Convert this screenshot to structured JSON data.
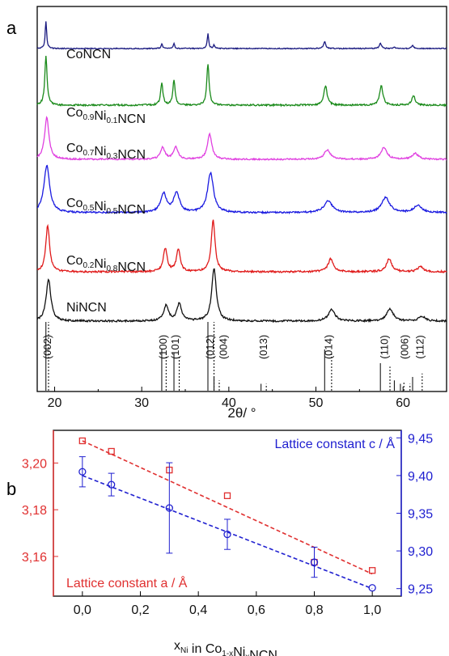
{
  "chart_data": [
    {
      "panel": "a",
      "type": "line",
      "xlabel": "2θ/ °",
      "ylabel": "",
      "xlim": [
        18,
        65
      ],
      "xticks": [
        20,
        30,
        40,
        50,
        60
      ],
      "series": [
        {
          "name": "CoNCN",
          "label_main": "CoNCN",
          "label_parts": [
            [
              "CoNCN",
              false
            ]
          ],
          "color": "#1a1a80",
          "width": 0.1,
          "peaks": [
            [
              19.0,
              1.0
            ],
            [
              32.3,
              0.18
            ],
            [
              33.7,
              0.2
            ],
            [
              37.6,
              0.55
            ],
            [
              38.3,
              0.12
            ],
            [
              51.0,
              0.25
            ],
            [
              57.4,
              0.2
            ],
            [
              59.0,
              0.05
            ],
            [
              61.1,
              0.11
            ]
          ]
        },
        {
          "name": "Co0.9Ni0.1NCN",
          "label_parts": [
            [
              "Co",
              false
            ],
            [
              "0.9",
              true
            ],
            [
              "Ni",
              false
            ],
            [
              "0.1",
              true
            ],
            [
              "NCN",
              false
            ]
          ],
          "color": "#1a8a1a",
          "width": 0.16,
          "peaks": [
            [
              19.0,
              1.0
            ],
            [
              32.3,
              0.45
            ],
            [
              33.7,
              0.5
            ],
            [
              37.6,
              0.85
            ],
            [
              51.1,
              0.4
            ],
            [
              57.5,
              0.4
            ],
            [
              61.2,
              0.2
            ]
          ]
        },
        {
          "name": "Co0.7Ni0.3NCN",
          "label_parts": [
            [
              "Co",
              false
            ],
            [
              "0.7",
              true
            ],
            [
              "Ni",
              false
            ],
            [
              "0.3",
              true
            ],
            [
              "NCN",
              false
            ]
          ],
          "color": "#e040e0",
          "width": 0.3,
          "peaks": [
            [
              19.1,
              1.0
            ],
            [
              32.4,
              0.28
            ],
            [
              33.9,
              0.3
            ],
            [
              37.8,
              0.6
            ],
            [
              51.3,
              0.22
            ],
            [
              57.8,
              0.28
            ],
            [
              61.4,
              0.14
            ]
          ]
        },
        {
          "name": "Co0.5Ni0.5NCN",
          "label_parts": [
            [
              "Co",
              false
            ],
            [
              "0.5",
              true
            ],
            [
              "Ni",
              false
            ],
            [
              "0.5",
              true
            ],
            [
              "NCN",
              false
            ]
          ],
          "color": "#1a1ae0",
          "width": 0.4,
          "peaks": [
            [
              19.1,
              1.0
            ],
            [
              32.5,
              0.4
            ],
            [
              34.0,
              0.42
            ],
            [
              37.9,
              0.85
            ],
            [
              51.4,
              0.25
            ],
            [
              58.0,
              0.32
            ],
            [
              61.7,
              0.15
            ]
          ]
        },
        {
          "name": "Co0.2Ni0.8NCN",
          "label_parts": [
            [
              "Co",
              false
            ],
            [
              "0.2",
              true
            ],
            [
              "Ni",
              false
            ],
            [
              "0.8",
              true
            ],
            [
              "NCN",
              false
            ]
          ],
          "color": "#e01a1a",
          "width": 0.26,
          "peaks": [
            [
              19.2,
              0.9
            ],
            [
              32.7,
              0.45
            ],
            [
              34.2,
              0.42
            ],
            [
              38.2,
              1.0
            ],
            [
              51.7,
              0.25
            ],
            [
              58.4,
              0.25
            ],
            [
              62.0,
              0.1
            ]
          ]
        },
        {
          "name": "NiNCN",
          "label_parts": [
            [
              "NiNCN",
              false
            ]
          ],
          "color": "#111111",
          "width": 0.32,
          "peaks": [
            [
              19.3,
              0.8
            ],
            [
              32.8,
              0.3
            ],
            [
              34.3,
              0.32
            ],
            [
              38.3,
              1.0
            ],
            [
              51.8,
              0.22
            ],
            [
              58.5,
              0.23
            ],
            [
              62.2,
              0.09
            ]
          ]
        }
      ],
      "reflections": [
        {
          "label": "(002)",
          "x": 19.2
        },
        {
          "label": "(100)",
          "x": 32.5
        },
        {
          "label": "(101)",
          "x": 33.9
        },
        {
          "label": "(012)",
          "x": 37.9
        },
        {
          "label": "(004)",
          "x": 39.4
        },
        {
          "label": "(013)",
          "x": 44.0
        },
        {
          "label": "(014)",
          "x": 51.5
        },
        {
          "label": "(110)",
          "x": 57.9
        },
        {
          "label": "(006)",
          "x": 60.2
        },
        {
          "label": "(112)",
          "x": 62.0
        }
      ],
      "stick_lines_solid": [
        [
          19.0,
          1.0
        ],
        [
          32.3,
          0.6
        ],
        [
          33.7,
          0.55
        ],
        [
          37.6,
          1.0
        ],
        [
          38.3,
          0.2
        ],
        [
          43.7,
          0.1
        ],
        [
          51.0,
          0.6
        ],
        [
          57.4,
          0.4
        ],
        [
          59.0,
          0.15
        ],
        [
          59.7,
          0.1
        ],
        [
          61.1,
          0.2
        ]
      ],
      "stick_lines_dotted": [
        [
          19.3,
          1.0
        ],
        [
          32.8,
          0.55
        ],
        [
          34.3,
          0.5
        ],
        [
          38.3,
          1.0
        ],
        [
          38.9,
          0.15
        ],
        [
          44.3,
          0.1
        ],
        [
          51.8,
          0.55
        ],
        [
          58.5,
          0.35
        ],
        [
          60.1,
          0.12
        ],
        [
          60.8,
          0.1
        ],
        [
          62.2,
          0.25
        ]
      ]
    },
    {
      "panel": "b",
      "type": "scatter",
      "xlabel_parts": [
        [
          "x",
          "normal"
        ],
        [
          "Ni",
          "sub"
        ],
        [
          " in Co",
          "normal"
        ],
        [
          "1-x",
          "sub"
        ],
        [
          "Ni",
          "normal"
        ],
        [
          "x",
          "sub"
        ],
        [
          "NCN",
          "normal"
        ]
      ],
      "xlim": [
        -0.1,
        1.1
      ],
      "xticks": [
        "0,0",
        "0,2",
        "0,4",
        "0,6",
        "0,8",
        "1,0"
      ],
      "xtick_values": [
        0.0,
        0.2,
        0.4,
        0.6,
        0.8,
        1.0
      ],
      "ylim_left": [
        3.143,
        3.214
      ],
      "yticks_left": [
        "3,16",
        "3,18",
        "3,20"
      ],
      "ytick_left_values": [
        3.16,
        3.18,
        3.2
      ],
      "ylim_right": [
        9.24,
        9.46
      ],
      "yticks_right": [
        "9,25",
        "9,30",
        "9,35",
        "9,40",
        "9,45"
      ],
      "ytick_right_values": [
        9.25,
        9.3,
        9.35,
        9.4,
        9.45
      ],
      "series": [
        {
          "name": "Lattice constant a / Å",
          "axis": "left",
          "color": "#e03030",
          "marker": "square",
          "x": [
            0.0,
            0.1,
            0.3,
            0.5,
            0.8,
            1.0
          ],
          "y": [
            3.2095,
            3.205,
            3.197,
            3.186,
            3.1575,
            3.154
          ],
          "err": [
            0.0,
            0.0,
            0.0,
            0.0,
            0.0,
            0.0
          ],
          "fit": [
            [
              0.0,
              3.2095
            ],
            [
              1.0,
              3.1525
            ]
          ]
        },
        {
          "name": "Lattice constant c / Å",
          "axis": "right",
          "color": "#2020d0",
          "marker": "circle",
          "x": [
            0.0,
            0.1,
            0.3,
            0.5,
            0.8,
            1.0
          ],
          "y": [
            9.405,
            9.388,
            9.357,
            9.322,
            9.285,
            9.251
          ],
          "err": [
            0.02,
            0.015,
            0.06,
            0.02,
            0.02,
            0.0
          ],
          "fit": [
            [
              0.0,
              9.4
            ],
            [
              1.0,
              9.25
            ]
          ]
        }
      ]
    }
  ],
  "panel_labels": {
    "a": "a",
    "b": "b"
  }
}
